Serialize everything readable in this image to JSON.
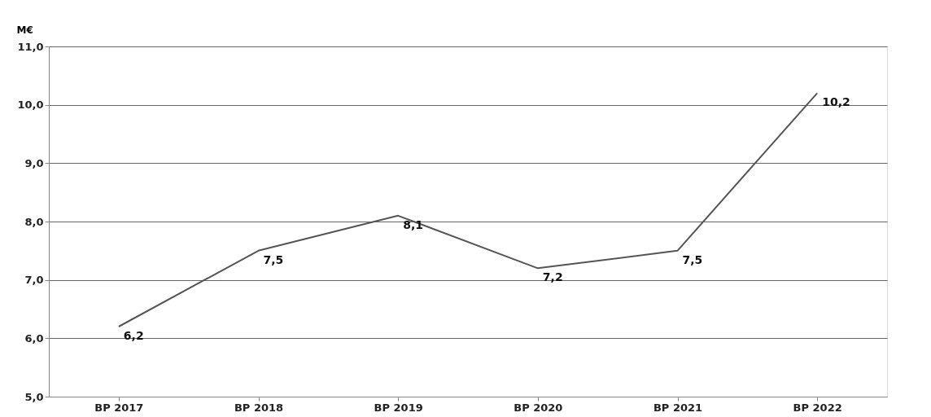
{
  "chart_data": {
    "type": "line",
    "ylabel": "M€",
    "categories": [
      "BP 2017",
      "BP 2018",
      "BP 2019",
      "BP 2020",
      "BP 2021",
      "BP 2022"
    ],
    "series": [
      {
        "color": "#555555",
        "values": [
          6.2,
          7.5,
          8.1,
          7.2,
          7.5,
          10.2
        ],
        "value_labels": [
          "6,2",
          "7,5",
          "8,1",
          "7,2",
          "7,5",
          "10,2"
        ]
      }
    ],
    "ylim": [
      5,
      11
    ],
    "yticks": [
      {
        "value": 5,
        "label": "5,0"
      },
      {
        "value": 6,
        "label": "6,0"
      },
      {
        "value": 7,
        "label": "7,0"
      },
      {
        "value": 8,
        "label": "8,0"
      },
      {
        "value": 9,
        "label": "9,0"
      },
      {
        "value": 10,
        "label": "10,0"
      },
      {
        "value": 11,
        "label": "11,0"
      }
    ],
    "grid": "y",
    "marker": "none",
    "line_style": "solid"
  }
}
